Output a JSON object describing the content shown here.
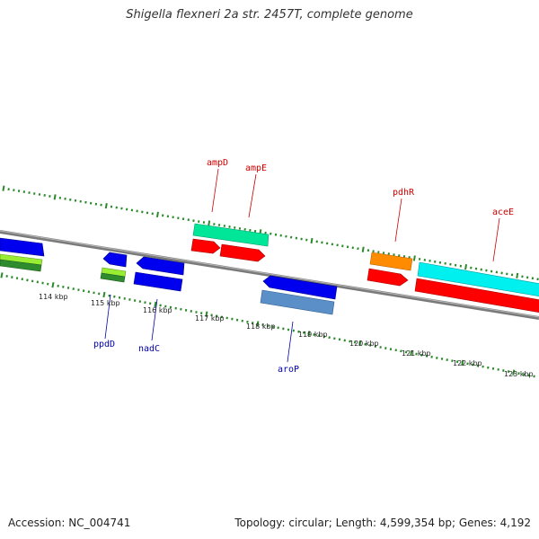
{
  "title": "Shigella flexneri 2a str. 2457T, complete genome",
  "footer": {
    "accession": "Accession: NC_004741",
    "topology": "Topology: circular; Length: 4,599,354 bp; Genes: 4,192"
  },
  "colors": {
    "backbone": "#808080",
    "tick": "#2a8a2a",
    "forward_label": "#cc0000",
    "reverse_label": "#0000aa"
  },
  "scale_labels": [
    "114 kbp",
    "115 kbp",
    "116 kbp",
    "117 kbp",
    "118 kbp",
    "119 kbp",
    "120 kbp",
    "121 kbp",
    "122 kbp",
    "123 kbp"
  ],
  "gene_labels": [
    {
      "name": "ampD",
      "strand": "forward"
    },
    {
      "name": "ampE",
      "strand": "forward"
    },
    {
      "name": "pdhR",
      "strand": "forward"
    },
    {
      "name": "aceE",
      "strand": "forward"
    },
    {
      "name": "ppdD",
      "strand": "reverse"
    },
    {
      "name": "nadC",
      "strand": "reverse"
    },
    {
      "name": "aroP",
      "strand": "reverse"
    }
  ],
  "feature_colors": [
    "#0000ee",
    "#99ee33",
    "#2e8b2e",
    "#00e699",
    "#ff0000",
    "#ff8c00",
    "#00ffff",
    "#5b8fc7"
  ]
}
